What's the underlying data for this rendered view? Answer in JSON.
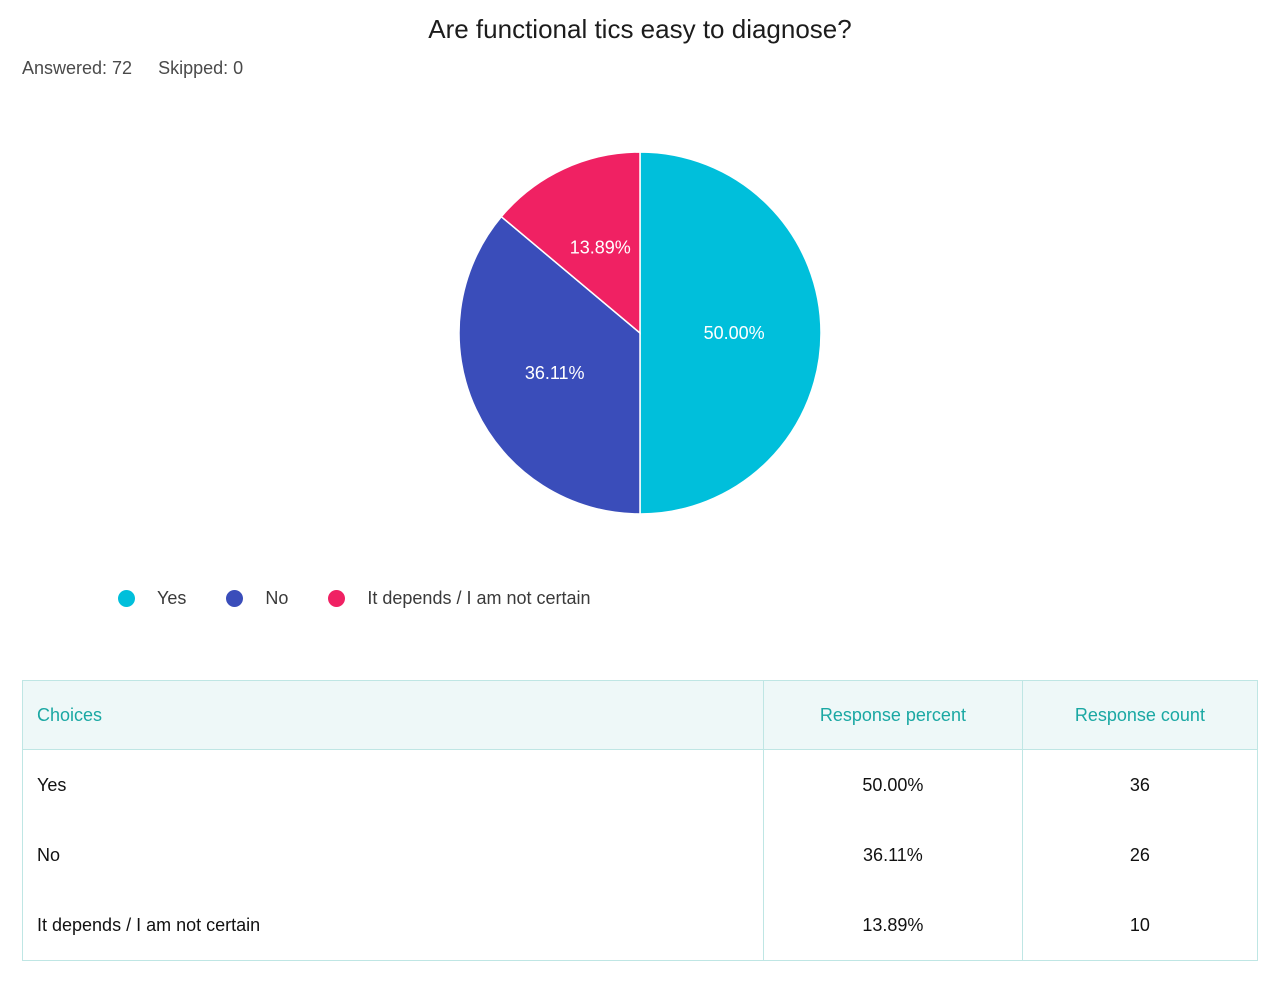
{
  "title": "Are functional tics easy to diagnose?",
  "stats": {
    "answered_label": "Answered: 72",
    "skipped_label": "Skipped: 0"
  },
  "colors": {
    "Yes": "#00bfdb",
    "No": "#3a4dba",
    "It depends / I am not certain": "#f02163"
  },
  "chart_data": {
    "type": "pie",
    "title": "Are functional tics easy to diagnose?",
    "categories": [
      "Yes",
      "No",
      "It depends / I am not certain"
    ],
    "values": [
      50.0,
      36.11,
      13.89
    ],
    "labels": [
      "50.00%",
      "36.11%",
      "13.89%"
    ],
    "colors": [
      "#00bfdb",
      "#3a4dba",
      "#f02163"
    ],
    "legend": "bottom-left"
  },
  "legend": [
    {
      "label": "Yes",
      "color": "#00bfdb"
    },
    {
      "label": "No",
      "color": "#3a4dba"
    },
    {
      "label": "It depends / I am not certain",
      "color": "#f02163"
    }
  ],
  "table": {
    "headers": {
      "choices": "Choices",
      "percent": "Response percent",
      "count": "Response count"
    },
    "rows": [
      {
        "choice": "Yes",
        "percent": "50.00%",
        "count": "36"
      },
      {
        "choice": "No",
        "percent": "36.11%",
        "count": "26"
      },
      {
        "choice": "It depends / I am not certain",
        "percent": "13.89%",
        "count": "10"
      }
    ]
  }
}
